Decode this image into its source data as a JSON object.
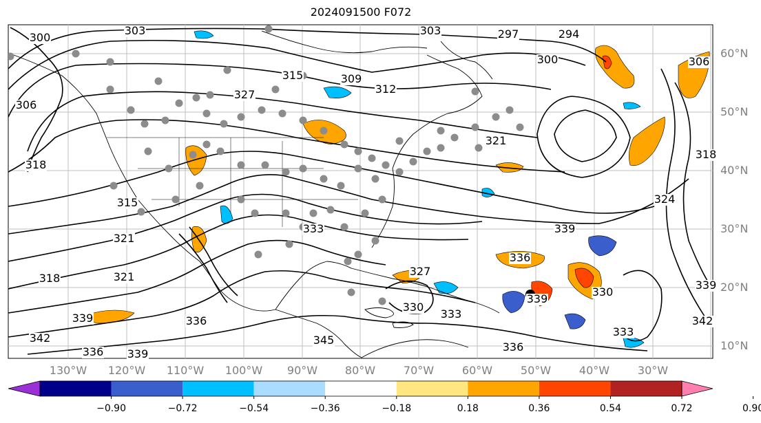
{
  "title": "2024091500 F072",
  "colors": {
    "land_outline": "#000000",
    "grid": "#bfbfbf",
    "station": "#8c8c8c",
    "background": "#ffffff"
  },
  "latitude_labels": [
    "60°N",
    "50°N",
    "40°N",
    "30°N",
    "20°N",
    "10°N"
  ],
  "longitude_labels": [
    "130°W",
    "120°W",
    "110°W",
    "100°W",
    "90°W",
    "80°W",
    "70°W",
    "60°W",
    "50°W",
    "40°W",
    "30°W"
  ],
  "contour_labels": [
    "303",
    "300",
    "297",
    "294",
    "306",
    "309",
    "312",
    "315",
    "318",
    "321",
    "324",
    "327",
    "330",
    "333",
    "336",
    "339",
    "342",
    "345"
  ],
  "colorbar": {
    "ticks": [
      "−0.90",
      "−0.72",
      "−0.54",
      "−0.36",
      "−0.18",
      "0.18",
      "0.36",
      "0.54",
      "0.72",
      "0.90"
    ],
    "colors": [
      "#9b30d6",
      "#00008b",
      "#3a5fcd",
      "#00bfff",
      "#aadcff",
      "#ffffff",
      "#ffe680",
      "#ffa500",
      "#ff4500",
      "#b22222",
      "#ff7fae"
    ]
  }
}
